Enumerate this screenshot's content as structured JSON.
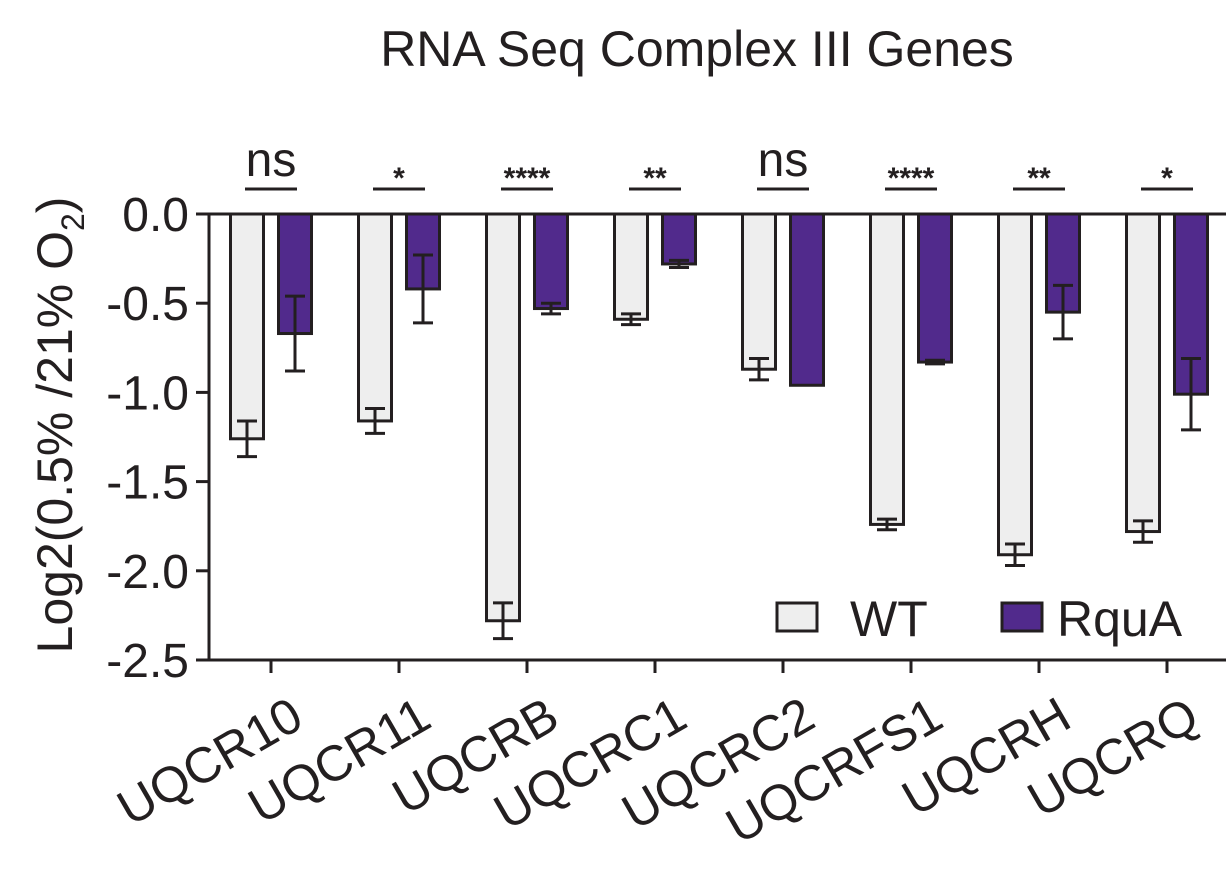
{
  "chart_data": {
    "type": "bar",
    "title": "RNA Seq Complex III Genes",
    "ylabel": "Log2(0.5% /21% O2)",
    "ylabel_parts": {
      "main": "Log2(0.5% /21% O",
      "sub": "2",
      "close": ")"
    },
    "xlabel": "",
    "ylim": [
      -2.5,
      0.0
    ],
    "yticks": [
      0.0,
      -0.5,
      -1.0,
      -1.5,
      -2.0,
      -2.5
    ],
    "ytick_labels": [
      "0.0",
      "-0.5",
      "-1.0",
      "-1.5",
      "-2.0",
      "-2.5"
    ],
    "categories": [
      "UQCR10",
      "UQCR11",
      "UQCRB",
      "UQCRC1",
      "UQCRC2",
      "UQCRFS1",
      "UQCRH",
      "UQCRQ"
    ],
    "series": [
      {
        "name": "WT",
        "color": "#eeeeee",
        "values": [
          -1.26,
          -1.16,
          -2.28,
          -0.59,
          -0.87,
          -1.74,
          -1.91,
          -1.78
        ],
        "error": [
          0.1,
          0.07,
          0.1,
          0.03,
          0.06,
          0.03,
          0.06,
          0.06
        ]
      },
      {
        "name": "RquA",
        "color": "#512a8c",
        "values": [
          -0.67,
          -0.42,
          -0.53,
          -0.28,
          -0.96,
          -0.83,
          -0.55,
          -1.01
        ],
        "error": [
          0.21,
          0.19,
          0.03,
          0.02,
          0.0,
          0.01,
          0.15,
          0.2
        ]
      }
    ],
    "significance": [
      "ns",
      "*",
      "****",
      "**",
      "ns",
      "****",
      "**",
      "*"
    ],
    "legend": {
      "position": "bottom-right",
      "entries": [
        "WT",
        "RquA"
      ]
    },
    "grid": false,
    "colors": {
      "wt": "#eeeeee",
      "rqua": "#512a8c",
      "ink": "#231f20"
    }
  }
}
